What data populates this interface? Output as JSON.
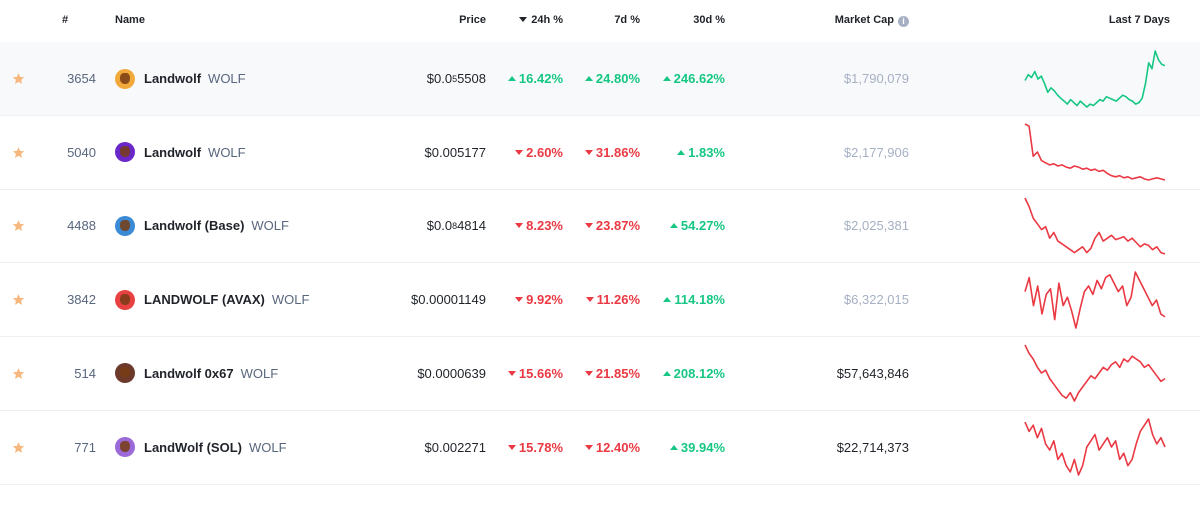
{
  "header": {
    "rank": "#",
    "name": "Name",
    "price": "Price",
    "change_24h": "24h %",
    "change_7d": "7d %",
    "change_30d": "30d %",
    "market_cap": "Market Cap",
    "last_7_days": "Last 7 Days",
    "info_icon": "info-icon",
    "sort_icon": "caret-down-icon"
  },
  "colors": {
    "up": "#16c784",
    "down": "#ea3943",
    "star": "#f6b87e"
  },
  "rows": [
    {
      "rank": "3654",
      "name": "Landwolf",
      "symbol": "WOLF",
      "price_main": "$0.0",
      "price_sub": "5",
      "price_tail": "5508",
      "change_24h": "16.42%",
      "change_24h_dir": "up",
      "change_7d": "24.80%",
      "change_7d_dir": "up",
      "change_30d": "246.62%",
      "change_30d_dir": "up",
      "market_cap": "$1,790,079",
      "market_cap_dim": true,
      "icon_color": "#f2a93b",
      "trend": "up",
      "spark": [
        38,
        42,
        40,
        44,
        39,
        41,
        36,
        30,
        33,
        31,
        28,
        26,
        24,
        22,
        25,
        23,
        21,
        24,
        22,
        20,
        22,
        21,
        23,
        25,
        24,
        27,
        26,
        25,
        24,
        26,
        28,
        27,
        25,
        24,
        22,
        23,
        26,
        36,
        50,
        46,
        58,
        52,
        49,
        48
      ]
    },
    {
      "rank": "5040",
      "name": "Landwolf",
      "symbol": "WOLF",
      "price_main": "$0.005177",
      "price_sub": "",
      "price_tail": "",
      "change_24h": "2.60%",
      "change_24h_dir": "down",
      "change_7d": "31.86%",
      "change_7d_dir": "down",
      "change_30d": "1.83%",
      "change_30d_dir": "up",
      "market_cap": "$2,177,906",
      "market_cap_dim": true,
      "icon_color": "#6a28c8",
      "trend": "down",
      "spark": [
        60,
        58,
        30,
        34,
        26,
        24,
        22,
        23,
        21,
        22,
        20,
        19,
        21,
        20,
        18,
        19,
        17,
        18,
        16,
        17,
        14,
        12,
        11,
        12,
        10,
        11,
        9,
        10,
        11,
        9,
        8,
        9,
        10,
        9,
        8
      ]
    },
    {
      "rank": "4488",
      "name": "Landwolf (Base)",
      "symbol": "WOLF",
      "price_main": "$0.0",
      "price_sub": "8",
      "price_tail": "4814",
      "change_24h": "8.23%",
      "change_24h_dir": "down",
      "change_7d": "23.87%",
      "change_7d_dir": "down",
      "change_30d": "54.27%",
      "change_30d_dir": "up",
      "market_cap": "$2,025,381",
      "market_cap_dim": true,
      "icon_color": "#3a8ad6",
      "trend": "down",
      "spark": [
        58,
        52,
        44,
        40,
        36,
        38,
        30,
        34,
        28,
        26,
        24,
        22,
        20,
        22,
        24,
        20,
        23,
        30,
        34,
        28,
        30,
        32,
        29,
        30,
        31,
        28,
        30,
        27,
        24,
        26,
        25,
        22,
        24,
        20,
        19
      ]
    },
    {
      "rank": "3842",
      "name": "LANDWOLF (AVAX)",
      "symbol": "WOLF",
      "price_main": "$0.00001149",
      "price_sub": "",
      "price_tail": "",
      "change_24h": "9.92%",
      "change_24h_dir": "down",
      "change_7d": "11.26%",
      "change_7d_dir": "down",
      "change_30d": "114.18%",
      "change_30d_dir": "up",
      "market_cap": "$6,322,015",
      "market_cap_dim": true,
      "icon_color": "#e84142",
      "trend": "down",
      "spark": [
        40,
        50,
        30,
        44,
        24,
        38,
        42,
        20,
        46,
        30,
        36,
        26,
        14,
        28,
        40,
        44,
        38,
        48,
        42,
        50,
        52,
        46,
        40,
        44,
        30,
        36,
        54,
        48,
        42,
        36,
        30,
        34,
        24,
        22
      ]
    },
    {
      "rank": "514",
      "name": "Landwolf 0x67",
      "symbol": "WOLF",
      "price_main": "$0.0000639",
      "price_sub": "",
      "price_tail": "",
      "change_24h": "15.66%",
      "change_24h_dir": "down",
      "change_7d": "21.85%",
      "change_7d_dir": "down",
      "change_30d": "208.12%",
      "change_30d_dir": "up",
      "market_cap": "$57,643,846",
      "market_cap_dim": false,
      "icon_color": "#6b3a2a",
      "trend": "down",
      "spark": [
        56,
        50,
        46,
        40,
        36,
        38,
        32,
        28,
        24,
        20,
        18,
        22,
        16,
        22,
        26,
        30,
        34,
        32,
        36,
        40,
        38,
        42,
        44,
        40,
        46,
        44,
        48,
        46,
        44,
        40,
        42,
        38,
        34,
        30,
        32
      ]
    },
    {
      "rank": "771",
      "name": "LandWolf (SOL)",
      "symbol": "WOLF",
      "price_main": "$0.002271",
      "price_sub": "",
      "price_tail": "",
      "change_24h": "15.78%",
      "change_24h_dir": "down",
      "change_7d": "12.40%",
      "change_7d_dir": "down",
      "change_30d": "39.94%",
      "change_30d_dir": "up",
      "market_cap": "$22,714,373",
      "market_cap_dim": false,
      "icon_color": "#9b6ad8",
      "trend": "down",
      "spark": [
        54,
        48,
        52,
        44,
        50,
        40,
        36,
        42,
        30,
        34,
        26,
        22,
        30,
        20,
        26,
        38,
        42,
        46,
        36,
        40,
        44,
        38,
        42,
        30,
        34,
        26,
        30,
        40,
        48,
        52,
        56,
        46,
        40,
        44,
        38
      ]
    }
  ]
}
